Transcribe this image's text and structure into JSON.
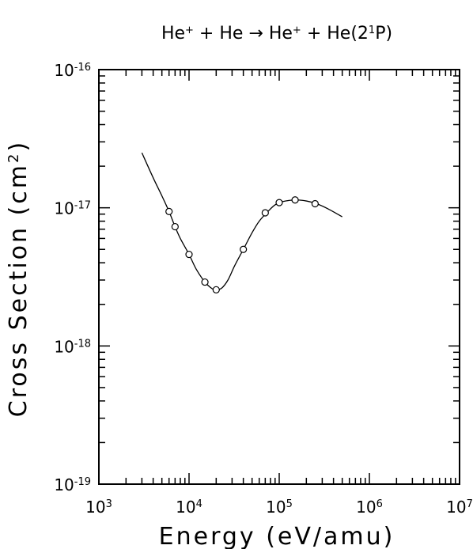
{
  "chart_data": {
    "type": "scatter",
    "title": {
      "base": "He",
      "sup": "+",
      "middle": " + He → He",
      "sup2": "+",
      "end": " + He(2",
      "sup3": "1",
      "end2": "P)"
    },
    "xlabel": "Energy (eV/amu)",
    "ylabel": {
      "base": "Cross Section (cm",
      "sup": "2",
      "end": ")"
    },
    "x_scale": "log",
    "y_scale": "log",
    "xlim": [
      1000,
      10000000
    ],
    "ylim": [
      1e-19,
      1e-16
    ],
    "x_ticks": [
      {
        "base": "10",
        "exp": "3",
        "value": 1000
      },
      {
        "base": "10",
        "exp": "4",
        "value": 10000
      },
      {
        "base": "10",
        "exp": "5",
        "value": 100000
      },
      {
        "base": "10",
        "exp": "6",
        "value": 1000000
      },
      {
        "base": "10",
        "exp": "7",
        "value": 10000000
      }
    ],
    "y_ticks": [
      {
        "base": "10",
        "exp": "-19",
        "value": 1e-19
      },
      {
        "base": "10",
        "exp": "-18",
        "value": 1e-18
      },
      {
        "base": "10",
        "exp": "-17",
        "value": 1e-17
      },
      {
        "base": "10",
        "exp": "-16",
        "value": 1e-16
      }
    ],
    "grid": false,
    "series": [
      {
        "kind": "fit-curve",
        "points": [
          [
            3000,
            2.5e-17
          ],
          [
            4000,
            1.65e-17
          ],
          [
            5000,
            1.22e-17
          ],
          [
            6000,
            9.4e-18
          ],
          [
            7000,
            7.3e-18
          ],
          [
            8000,
            6e-18
          ],
          [
            10000,
            4.6e-18
          ],
          [
            12000,
            3.6e-18
          ],
          [
            15000,
            2.9e-18
          ],
          [
            18000,
            2.6e-18
          ],
          [
            20000,
            2.55e-18
          ],
          [
            23000,
            2.62e-18
          ],
          [
            27000,
            3e-18
          ],
          [
            32000,
            3.8e-18
          ],
          [
            40000,
            5e-18
          ],
          [
            50000,
            6.6e-18
          ],
          [
            60000,
            8e-18
          ],
          [
            75000,
            9.4e-18
          ],
          [
            90000,
            1.05e-17
          ],
          [
            110000,
            1.11e-17
          ],
          [
            150000,
            1.14e-17
          ],
          [
            200000,
            1.12e-17
          ],
          [
            260000,
            1.07e-17
          ],
          [
            350000,
            9.8e-18
          ],
          [
            500000,
            8.6e-18
          ]
        ]
      },
      {
        "kind": "measured",
        "marker": "open-circle",
        "points": [
          [
            6000,
            9.4e-18
          ],
          [
            7000,
            7.3e-18
          ],
          [
            10000,
            4.6e-18
          ],
          [
            15000,
            2.9e-18
          ],
          [
            20000,
            2.55e-18
          ],
          [
            40000,
            5e-18
          ],
          [
            70000,
            9.2e-18
          ],
          [
            100000,
            1.09e-17
          ],
          [
            150000,
            1.14e-17
          ],
          [
            250000,
            1.07e-17
          ]
        ]
      }
    ]
  }
}
